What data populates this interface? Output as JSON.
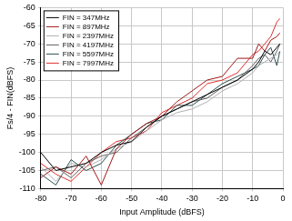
{
  "chart_data": {
    "type": "line",
    "x_label": "Input Amplitude (dBFS)",
    "y_label": "Fs/4 - FIN(dBFS)",
    "x": [
      -80,
      -75,
      -70,
      -65,
      -60,
      -55,
      -50,
      -45,
      -40,
      -35,
      -30,
      -25,
      -20,
      -15,
      -10,
      -8,
      -6,
      -4,
      -2,
      -1
    ],
    "series": [
      {
        "name": "FIN = 347MHz",
        "color": "#000000",
        "values": [
          -100,
          -105,
          -104,
          -103,
          -100,
          -98,
          -97,
          -93,
          -90,
          -88,
          -86,
          -84,
          -82,
          -80,
          -77,
          -75,
          -72,
          -73,
          -71,
          -70
        ]
      },
      {
        "name": "FIN = 897MHz",
        "color": "#a01818",
        "values": [
          -107,
          -104,
          -106,
          -101,
          -109,
          -99,
          -95,
          -92,
          -90,
          -86,
          -83,
          -80,
          -79,
          -74,
          -74,
          -70,
          -72,
          -69,
          -68,
          -67
        ]
      },
      {
        "name": "FIN = 2397MHz",
        "color": "#b0b0b0",
        "values": [
          -104,
          -108,
          -103,
          -104,
          -102,
          -99,
          -97,
          -94,
          -91,
          -89,
          -88,
          -86,
          -83,
          -81,
          -78,
          -76,
          -75,
          -74,
          -73,
          -72
        ]
      },
      {
        "name": "FIN = 4197MHz",
        "color": "#606060",
        "values": [
          -105,
          -104,
          -107,
          -103,
          -101,
          -100,
          -96,
          -93,
          -90,
          -88,
          -86,
          -85,
          -82,
          -80,
          -76,
          -74,
          -73,
          -75,
          -72,
          -70
        ]
      },
      {
        "name": "FIN = 5597MHz",
        "color": "#2f5050",
        "values": [
          -106,
          -109,
          -102,
          -105,
          -103,
          -98,
          -95,
          -92,
          -91,
          -87,
          -87,
          -84,
          -81,
          -79,
          -77,
          -76,
          -73,
          -71,
          -76,
          -72
        ]
      },
      {
        "name": "FIN = 7997MHz",
        "color": "#e03030",
        "values": [
          -103,
          -106,
          -108,
          -104,
          -100,
          -97,
          -96,
          -94,
          -89,
          -87,
          -85,
          -81,
          -80,
          -78,
          -73,
          -72,
          -70,
          -68,
          -64,
          -63
        ]
      }
    ],
    "xlim": [
      -80,
      0
    ],
    "xticks": [
      -80,
      -70,
      -60,
      -50,
      -40,
      -30,
      -20,
      -10,
      0
    ],
    "ylim": [
      -110,
      -60
    ],
    "yticks": [
      -110,
      -105,
      -100,
      -95,
      -90,
      -85,
      -80,
      -75,
      -70,
      -65,
      -60
    ],
    "grid": true,
    "legend": "upper left"
  }
}
